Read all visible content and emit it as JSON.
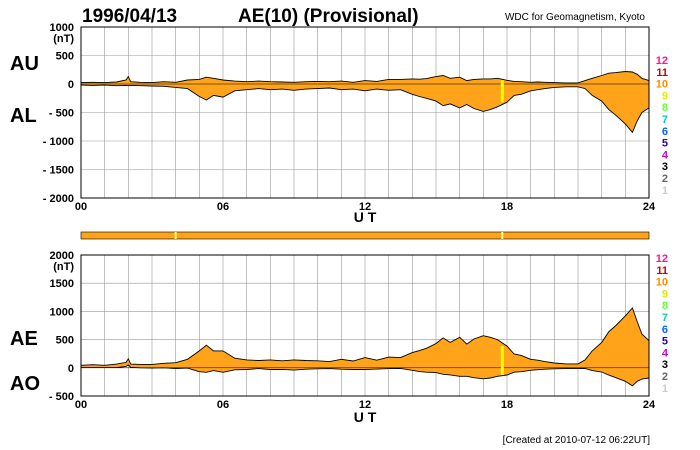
{
  "header": {
    "date": "1996/04/13",
    "title": "AE(10) (Provisional)",
    "source": "WDC for Geomagnetism, Kyoto"
  },
  "footer": {
    "created": "[Created at 2010-07-12 06:22UT]"
  },
  "colors": {
    "fill": "#ffa31a",
    "outline": "#000000",
    "grid": "#9a9a9a",
    "highlight": "#ffff00",
    "bar_accent": "#ffff80"
  },
  "scale_legend": {
    "labels": [
      "12",
      "11",
      "10",
      "9",
      "8",
      "7",
      "6",
      "5",
      "4",
      "3",
      "2",
      "1"
    ],
    "colors": [
      "#ff1493",
      "#cc0000",
      "#ff8c00",
      "#e6e600",
      "#66ff33",
      "#00cccc",
      "#0066ff",
      "#330099",
      "#cc00cc",
      "#000000",
      "#666666",
      "#cccccc"
    ]
  },
  "chart_data": [
    {
      "type": "area",
      "panel": "AU/AL",
      "row_labels": [
        "AU",
        "AL"
      ],
      "xlabel": "U T",
      "ylabel_unit": "(nT)",
      "x_ticks": [
        "00",
        "06",
        "12",
        "18",
        "24"
      ],
      "y_ticks": [
        "1000",
        "500",
        "0",
        "- 500",
        "- 1000",
        "- 1500",
        "- 2000"
      ],
      "y_tick_values": [
        1000,
        500,
        0,
        -500,
        -1000,
        -1500,
        -2000
      ],
      "xlim": [
        0,
        24
      ],
      "ylim": [
        -2000,
        1000
      ],
      "grid": true,
      "highlight_hour": 17.8,
      "x": [
        0,
        0.5,
        1,
        1.5,
        1.9,
        2,
        2.1,
        2.5,
        3,
        3.5,
        4,
        4.5,
        5,
        5.3,
        5.6,
        6,
        6.5,
        7,
        7.5,
        8,
        8.5,
        9,
        9.5,
        10,
        10.5,
        11,
        11.5,
        12,
        12.5,
        13,
        13.5,
        14,
        14.3,
        14.6,
        15,
        15.3,
        15.6,
        16,
        16.3,
        16.6,
        17,
        17.3,
        17.6,
        18,
        18.3,
        18.6,
        19,
        19.3,
        19.6,
        20,
        20.5,
        21,
        21.3,
        21.6,
        22,
        22.3,
        22.6,
        23,
        23.3,
        23.5,
        23.7,
        24
      ],
      "series": [
        {
          "name": "AU",
          "values": [
            25,
            30,
            25,
            35,
            70,
            130,
            40,
            30,
            25,
            40,
            30,
            70,
            80,
            120,
            100,
            70,
            50,
            40,
            50,
            40,
            35,
            30,
            40,
            45,
            40,
            50,
            30,
            60,
            45,
            80,
            80,
            90,
            85,
            95,
            130,
            150,
            100,
            120,
            60,
            80,
            90,
            90,
            100,
            65,
            45,
            40,
            30,
            35,
            30,
            25,
            20,
            20,
            60,
            100,
            150,
            190,
            200,
            220,
            210,
            170,
            100,
            60
          ]
        },
        {
          "name": "AL",
          "values": [
            -20,
            -25,
            -20,
            -30,
            -25,
            -30,
            -25,
            -30,
            -35,
            -40,
            -60,
            -80,
            -220,
            -280,
            -200,
            -230,
            -120,
            -100,
            -80,
            -100,
            -90,
            -110,
            -90,
            -80,
            -70,
            -100,
            -90,
            -120,
            -90,
            -110,
            -100,
            -180,
            -220,
            -250,
            -300,
            -380,
            -350,
            -420,
            -360,
            -430,
            -480,
            -450,
            -400,
            -320,
            -200,
            -180,
            -120,
            -100,
            -80,
            -60,
            -50,
            -50,
            -80,
            -200,
            -300,
            -450,
            -550,
            -700,
            -850,
            -650,
            -500,
            -420
          ]
        }
      ]
    },
    {
      "type": "area",
      "panel": "AE/AO",
      "row_labels": [
        "AE",
        "AO"
      ],
      "xlabel": "U T",
      "ylabel_unit": "(nT)",
      "x_ticks": [
        "00",
        "06",
        "12",
        "18",
        "24"
      ],
      "y_ticks": [
        "2000",
        "1500",
        "1000",
        "500",
        "0",
        "- 500"
      ],
      "y_tick_values": [
        2000,
        1500,
        1000,
        500,
        0,
        -500
      ],
      "xlim": [
        0,
        24
      ],
      "ylim": [
        -500,
        2000
      ],
      "grid": true,
      "highlight_hour": 17.8,
      "x": [
        0,
        0.5,
        1,
        1.5,
        1.9,
        2,
        2.1,
        2.5,
        3,
        3.5,
        4,
        4.5,
        5,
        5.3,
        5.6,
        6,
        6.5,
        7,
        7.5,
        8,
        8.5,
        9,
        9.5,
        10,
        10.5,
        11,
        11.5,
        12,
        12.5,
        13,
        13.5,
        14,
        14.3,
        14.6,
        15,
        15.3,
        15.6,
        16,
        16.3,
        16.6,
        17,
        17.3,
        17.6,
        18,
        18.3,
        18.6,
        19,
        19.3,
        19.6,
        20,
        20.5,
        21,
        21.3,
        21.6,
        22,
        22.3,
        22.6,
        23,
        23.3,
        23.5,
        23.7,
        24
      ],
      "series": [
        {
          "name": "AE",
          "values": [
            45,
            55,
            45,
            65,
            95,
            160,
            65,
            60,
            60,
            80,
            90,
            150,
            300,
            400,
            300,
            300,
            170,
            140,
            130,
            140,
            125,
            140,
            130,
            125,
            110,
            150,
            120,
            180,
            135,
            190,
            180,
            270,
            305,
            345,
            430,
            530,
            450,
            540,
            420,
            510,
            570,
            540,
            500,
            385,
            245,
            220,
            150,
            135,
            110,
            85,
            70,
            70,
            140,
            300,
            450,
            640,
            750,
            920,
            1060,
            820,
            600,
            480
          ]
        },
        {
          "name": "AO",
          "values": [
            3,
            3,
            3,
            3,
            23,
            50,
            8,
            0,
            -5,
            0,
            -15,
            -5,
            -70,
            -80,
            -50,
            -80,
            -35,
            -30,
            -15,
            -30,
            -28,
            -40,
            -25,
            -18,
            -15,
            -25,
            -30,
            -30,
            -23,
            -15,
            -10,
            -45,
            -68,
            -78,
            -85,
            -115,
            -125,
            -150,
            -150,
            -175,
            -195,
            -180,
            -150,
            -128,
            -78,
            -70,
            -45,
            -33,
            -25,
            -18,
            -15,
            -15,
            -10,
            -50,
            -75,
            -130,
            -175,
            -240,
            -320,
            -240,
            -200,
            -180
          ]
        }
      ]
    }
  ],
  "status_bar": {
    "markers_hours": [
      4,
      17.8
    ]
  }
}
